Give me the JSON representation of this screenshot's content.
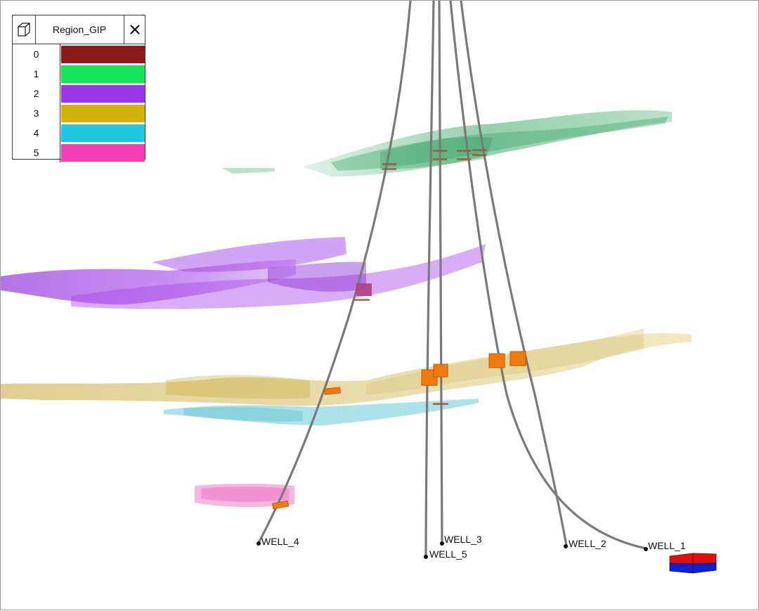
{
  "legend": {
    "title": "Region_GIP",
    "cube_icon": "cube-icon",
    "close_icon": "close-icon",
    "entries": [
      {
        "key": "0",
        "color": "#8b1a1a"
      },
      {
        "key": "1",
        "color": "#17e35a"
      },
      {
        "key": "2",
        "color": "#9b35e8"
      },
      {
        "key": "3",
        "color": "#d3b40c"
      },
      {
        "key": "4",
        "color": "#20c8e2"
      },
      {
        "key": "5",
        "color": "#f240b4"
      }
    ]
  },
  "wells": [
    {
      "name": "WELL_1"
    },
    {
      "name": "WELL_2"
    },
    {
      "name": "WELL_3"
    },
    {
      "name": "WELL_4"
    },
    {
      "name": "WELL_5"
    }
  ],
  "colors": {
    "trajectory": "#7a7a7a",
    "hit_marker": "#f07a10",
    "region_1": "#3aaa68",
    "region_2": "#9b35e8",
    "region_3": "#d8c070",
    "region_4": "#5ac8d8",
    "region_5": "#f060c0",
    "orientation_top": "#e01010",
    "orientation_bottom": "#1020d0"
  }
}
